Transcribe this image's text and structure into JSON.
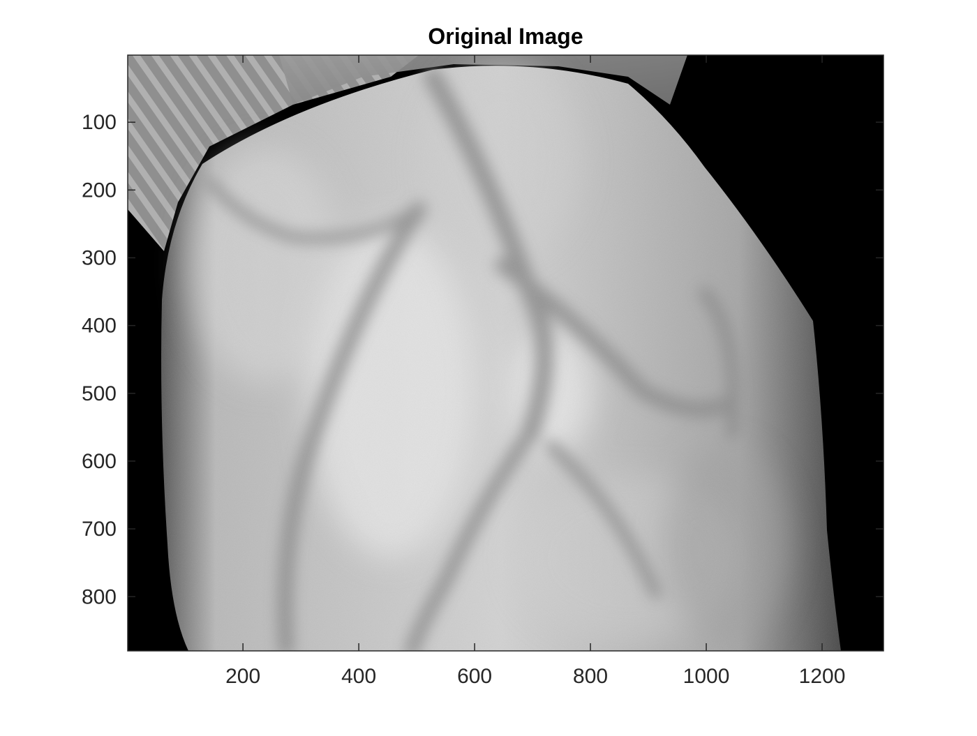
{
  "figure": {
    "title": "Original Image",
    "image_description_icon": "grayscale-vein-image",
    "colormap": "gray",
    "background_color": "#000000",
    "axis_color": "#262626",
    "x_axis": {
      "range": [
        1,
        1306
      ],
      "ticks": [
        200,
        400,
        600,
        800,
        1000,
        1200
      ],
      "tick_labels": [
        "200",
        "400",
        "600",
        "800",
        "1000",
        "1200"
      ]
    },
    "y_axis": {
      "range": [
        1,
        880
      ],
      "reversed": true,
      "ticks": [
        100,
        200,
        300,
        400,
        500,
        600,
        700,
        800
      ],
      "tick_labels": [
        "100",
        "200",
        "300",
        "400",
        "500",
        "600",
        "700",
        "800"
      ]
    }
  }
}
